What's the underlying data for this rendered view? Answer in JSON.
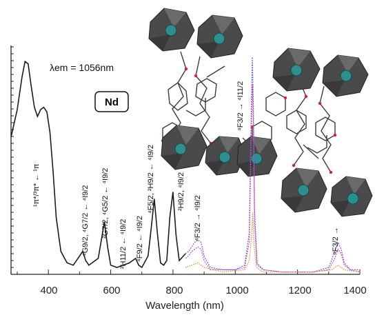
{
  "chart_data": {
    "type": "line",
    "title": "",
    "xlabel": "Wavelength (nm)",
    "ylabel": "",
    "xlim": [
      280,
      1400
    ],
    "xticks": [
      400,
      600,
      800,
      1000,
      1200,
      1400
    ],
    "xtick_labels": [
      "400",
      "600",
      "800",
      "1000",
      "1200",
      "1400"
    ],
    "grid": false,
    "emission_label": "λem = 1056nm",
    "badge": "Nd",
    "excitation": {
      "x": [
        280,
        300,
        315,
        325,
        335,
        345,
        355,
        365,
        375,
        385,
        395,
        405,
        415,
        425,
        440,
        460,
        480,
        500,
        510,
        520,
        530,
        540,
        560,
        570,
        580,
        590,
        600,
        620,
        640,
        660,
        680,
        690,
        700,
        720,
        730,
        740,
        750,
        760,
        770,
        780,
        790,
        800,
        810,
        820,
        840
      ],
      "y": [
        0.6,
        0.72,
        0.86,
        0.93,
        0.92,
        0.82,
        0.73,
        0.69,
        0.72,
        0.73,
        0.71,
        0.62,
        0.45,
        0.25,
        0.1,
        0.05,
        0.04,
        0.08,
        0.1,
        0.06,
        0.04,
        0.05,
        0.07,
        0.15,
        0.23,
        0.12,
        0.04,
        0.03,
        0.04,
        0.05,
        0.07,
        0.04,
        0.03,
        0.08,
        0.2,
        0.33,
        0.18,
        0.05,
        0.04,
        0.06,
        0.25,
        0.36,
        0.17,
        0.06,
        0.09
      ]
    },
    "series": [
      {
        "x": [
          840,
          850,
          860,
          870,
          880,
          890,
          900,
          920,
          960,
          1000,
          1030,
          1045,
          1050,
          1055,
          1058,
          1062,
          1070,
          1090,
          1150,
          1250,
          1300,
          1320,
          1330,
          1340,
          1350,
          1370,
          1400
        ],
        "y": [
          0.09,
          0.1,
          0.12,
          0.14,
          0.15,
          0.14,
          0.08,
          0.03,
          0.02,
          0.02,
          0.04,
          0.18,
          0.62,
          0.95,
          0.76,
          0.28,
          0.05,
          0.02,
          0.01,
          0.01,
          0.03,
          0.1,
          0.14,
          0.11,
          0.05,
          0.02,
          0.02
        ]
      },
      {
        "x": [
          840,
          850,
          860,
          870,
          880,
          890,
          900,
          920,
          960,
          1000,
          1030,
          1045,
          1050,
          1055,
          1058,
          1062,
          1070,
          1090,
          1150,
          1250,
          1300,
          1320,
          1330,
          1340,
          1350,
          1370,
          1400
        ],
        "y": [
          0.07,
          0.08,
          0.1,
          0.11,
          0.12,
          0.11,
          0.06,
          0.02,
          0.02,
          0.02,
          0.03,
          0.14,
          0.52,
          0.83,
          0.65,
          0.22,
          0.04,
          0.02,
          0.01,
          0.01,
          0.02,
          0.07,
          0.11,
          0.09,
          0.04,
          0.02,
          0.01
        ]
      },
      {
        "x": [
          840,
          860,
          880,
          900,
          960,
          1030,
          1045,
          1052,
          1056,
          1060,
          1068,
          1090,
          1250,
          1310,
          1330,
          1350,
          1400
        ],
        "y": [
          0.03,
          0.04,
          0.05,
          0.03,
          0.01,
          0.02,
          0.06,
          0.16,
          0.27,
          0.13,
          0.03,
          0.01,
          0.01,
          0.02,
          0.04,
          0.02,
          0.01
        ]
      }
    ],
    "annotations": [
      {
        "x": 330,
        "text": "¹π*/³π* ← ¹π"
      },
      {
        "x": 520,
        "text": "⁴G9/2, ⁴G7/2 ← ⁴I9/2"
      },
      {
        "x": 580,
        "text": "²G7/2, ⁴G5/2 ← ⁴I9/2"
      },
      {
        "x": 640,
        "text": "²H11/2 ← ⁴I9/2"
      },
      {
        "x": 685,
        "text": "⁴F9/2 ← ⁴I9/2"
      },
      {
        "x": 742,
        "text": "⁴F5/2, ²H9/2 ← ⁴I9/2"
      },
      {
        "x": 798,
        "text": "²H9/2, ⁴I9/2"
      },
      {
        "x": 880,
        "text": "⁴F3/2 → ⁴I9/2"
      },
      {
        "x": 1052,
        "text": "⁴F3/2 → ⁴I11/2"
      },
      {
        "x": 1330,
        "text": "⁴F3/2 →"
      }
    ],
    "colors": {
      "excitation": "#1a1a1a",
      "series_1": "#6a5ae8",
      "series_2": "#d04fa0",
      "series_3": "#e08a2c",
      "polyhedron": "#505050",
      "ion": "#2f8f8f",
      "bond": "#3a3a3a",
      "oxygen": "#d8203a"
    }
  }
}
